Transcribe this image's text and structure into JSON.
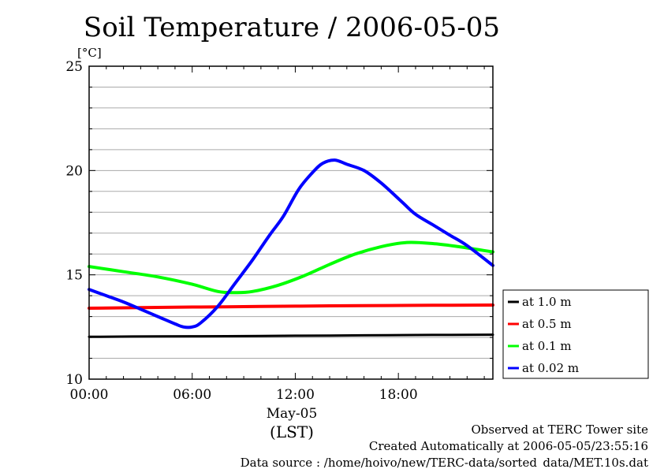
{
  "chart_data": {
    "type": "line",
    "title": "Soil Temperature / 2006-05-05",
    "y_unit": "[°C]",
    "ylim": [
      10,
      25
    ],
    "y_ticks": [
      "10",
      "15",
      "20",
      "25"
    ],
    "xlim": [
      0,
      23.5
    ],
    "x_ticks": [
      {
        "value": 0,
        "label": "00:00"
      },
      {
        "value": 6,
        "label": "06:00"
      },
      {
        "value": 12,
        "label": "12:00"
      },
      {
        "value": 18,
        "label": "18:00"
      }
    ],
    "x_date_label": "May-05",
    "x_label": "(LST)",
    "grid": true,
    "legend_position": "right",
    "series": [
      {
        "name": "at 1.0 m",
        "color": "#000000",
        "points": [
          [
            0,
            12.03
          ],
          [
            4,
            12.05
          ],
          [
            8,
            12.06
          ],
          [
            12,
            12.08
          ],
          [
            16,
            12.1
          ],
          [
            20,
            12.12
          ],
          [
            23.5,
            12.13
          ]
        ]
      },
      {
        "name": "at 0.5 m",
        "color": "#ff0000",
        "points": [
          [
            0,
            13.4
          ],
          [
            4,
            13.44
          ],
          [
            8,
            13.47
          ],
          [
            12,
            13.5
          ],
          [
            16,
            13.52
          ],
          [
            20,
            13.54
          ],
          [
            23.5,
            13.55
          ]
        ]
      },
      {
        "name": "at 0.1 m",
        "color": "#00ff00",
        "points": [
          [
            0,
            15.4
          ],
          [
            2,
            15.15
          ],
          [
            4,
            14.9
          ],
          [
            6,
            14.55
          ],
          [
            7.5,
            14.2
          ],
          [
            8.5,
            14.15
          ],
          [
            9.5,
            14.2
          ],
          [
            11,
            14.5
          ],
          [
            12.5,
            14.95
          ],
          [
            14,
            15.5
          ],
          [
            15.5,
            16.0
          ],
          [
            17,
            16.35
          ],
          [
            18.5,
            16.55
          ],
          [
            20,
            16.5
          ],
          [
            21.5,
            16.35
          ],
          [
            23.5,
            16.1
          ]
        ]
      },
      {
        "name": "at 0.02 m",
        "color": "#0000ff",
        "points": [
          [
            0,
            14.3
          ],
          [
            1,
            14.0
          ],
          [
            2,
            13.7
          ],
          [
            3,
            13.35
          ],
          [
            4,
            13.0
          ],
          [
            5,
            12.65
          ],
          [
            5.5,
            12.5
          ],
          [
            6,
            12.5
          ],
          [
            6.5,
            12.7
          ],
          [
            7.5,
            13.5
          ],
          [
            8.5,
            14.6
          ],
          [
            9.5,
            15.7
          ],
          [
            10.5,
            16.9
          ],
          [
            11.3,
            17.8
          ],
          [
            12.2,
            19.1
          ],
          [
            13,
            19.9
          ],
          [
            13.6,
            20.35
          ],
          [
            14.3,
            20.5
          ],
          [
            15,
            20.3
          ],
          [
            16,
            20.0
          ],
          [
            17,
            19.4
          ],
          [
            18.2,
            18.5
          ],
          [
            19,
            17.9
          ],
          [
            20,
            17.4
          ],
          [
            21,
            16.9
          ],
          [
            22,
            16.4
          ],
          [
            23.5,
            15.45
          ]
        ]
      }
    ]
  },
  "footer": {
    "observed": "Observed at TERC Tower site",
    "created": "Created Automatically at 2006-05-05/23:55:16",
    "source": "Data source : /home/hoivo/new/TERC-data/sorted_data/MET.10s.dat"
  }
}
